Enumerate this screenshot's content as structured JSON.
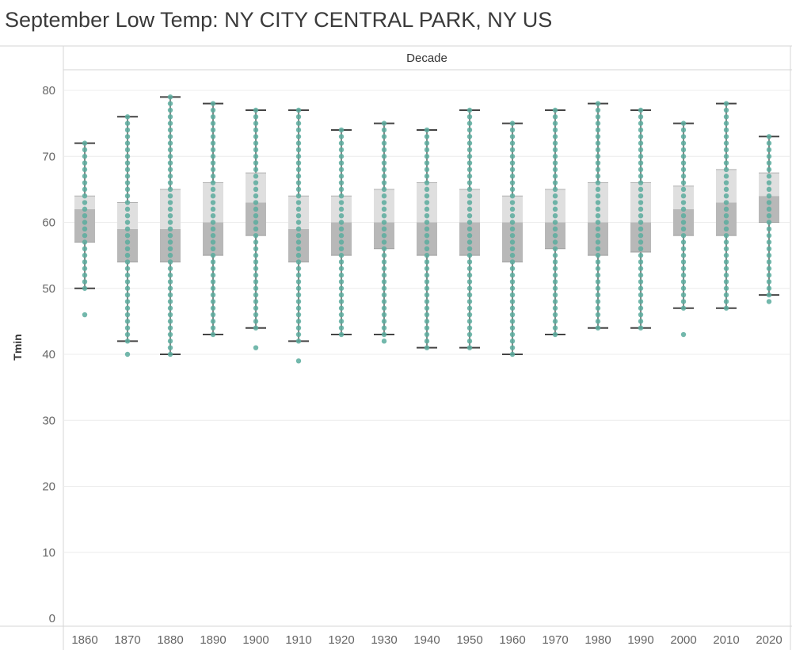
{
  "title": "September Low Temp: NY CITY CENTRAL PARK, NY US",
  "chart_data": {
    "type": "box-and-dot",
    "title": "September Low Temp: NY CITY CENTRAL PARK, NY US",
    "column_header": "Decade",
    "ylabel": "Tmin",
    "ylim": [
      0,
      82
    ],
    "yticks": [
      0,
      10,
      20,
      30,
      40,
      50,
      60,
      70,
      80
    ],
    "gridlines": true,
    "colors": {
      "dot": "#5aab9e",
      "whisker": "#444444",
      "box_lower": "#b8b8b8",
      "box_upper": "#dfdfdf"
    },
    "categories": [
      "1860",
      "1870",
      "1880",
      "1890",
      "1900",
      "1910",
      "1920",
      "1930",
      "1940",
      "1950",
      "1960",
      "1970",
      "1980",
      "1990",
      "2000",
      "2010",
      "2020"
    ],
    "boxes": [
      {
        "decade": "1860",
        "whisker_low": 50,
        "q1": 57,
        "median": 62,
        "q3": 64,
        "whisker_high": 72,
        "min": 46,
        "max": 72
      },
      {
        "decade": "1870",
        "whisker_low": 42,
        "q1": 54,
        "median": 59,
        "q3": 63,
        "whisker_high": 76,
        "min": 40,
        "max": 76
      },
      {
        "decade": "1880",
        "whisker_low": 40,
        "q1": 54,
        "median": 59,
        "q3": 65,
        "whisker_high": 79,
        "min": 40,
        "max": 79
      },
      {
        "decade": "1890",
        "whisker_low": 43,
        "q1": 55,
        "median": 60,
        "q3": 66,
        "whisker_high": 78,
        "min": 43,
        "max": 78
      },
      {
        "decade": "1900",
        "whisker_low": 44,
        "q1": 58,
        "median": 63,
        "q3": 67.5,
        "whisker_high": 77,
        "min": 41,
        "max": 77
      },
      {
        "decade": "1910",
        "whisker_low": 42,
        "q1": 54,
        "median": 59,
        "q3": 64,
        "whisker_high": 77,
        "min": 39,
        "max": 77
      },
      {
        "decade": "1920",
        "whisker_low": 43,
        "q1": 55,
        "median": 60,
        "q3": 64,
        "whisker_high": 74,
        "min": 43,
        "max": 74
      },
      {
        "decade": "1930",
        "whisker_low": 43,
        "q1": 56,
        "median": 60,
        "q3": 65,
        "whisker_high": 75,
        "min": 42,
        "max": 75
      },
      {
        "decade": "1940",
        "whisker_low": 41,
        "q1": 55,
        "median": 60,
        "q3": 66,
        "whisker_high": 74,
        "min": 41,
        "max": 74
      },
      {
        "decade": "1950",
        "whisker_low": 41,
        "q1": 55,
        "median": 60,
        "q3": 65,
        "whisker_high": 77,
        "min": 41,
        "max": 77
      },
      {
        "decade": "1960",
        "whisker_low": 40,
        "q1": 54,
        "median": 60,
        "q3": 64,
        "whisker_high": 75,
        "min": 40,
        "max": 75
      },
      {
        "decade": "1970",
        "whisker_low": 43,
        "q1": 56,
        "median": 60,
        "q3": 65,
        "whisker_high": 77,
        "min": 43,
        "max": 77
      },
      {
        "decade": "1980",
        "whisker_low": 44,
        "q1": 55,
        "median": 60,
        "q3": 66,
        "whisker_high": 78,
        "min": 44,
        "max": 78
      },
      {
        "decade": "1990",
        "whisker_low": 44,
        "q1": 55.5,
        "median": 60,
        "q3": 66,
        "whisker_high": 77,
        "min": 44,
        "max": 77
      },
      {
        "decade": "2000",
        "whisker_low": 47,
        "q1": 58,
        "median": 62,
        "q3": 65.5,
        "whisker_high": 75,
        "min": 43,
        "max": 75
      },
      {
        "decade": "2010",
        "whisker_low": 47,
        "q1": 58,
        "median": 63,
        "q3": 68,
        "whisker_high": 78,
        "min": 47,
        "max": 78
      },
      {
        "decade": "2020",
        "whisker_low": 49,
        "q1": 60,
        "median": 64,
        "q3": 67.5,
        "whisker_high": 73,
        "min": 48,
        "max": 73
      }
    ]
  }
}
